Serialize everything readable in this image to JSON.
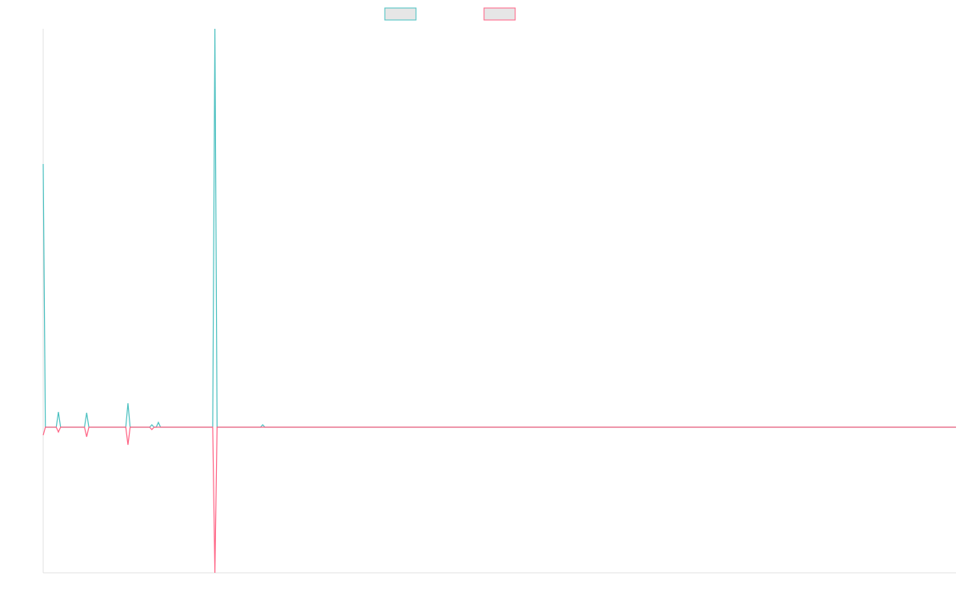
{
  "chart_data": {
    "type": "line",
    "x": [
      0,
      1,
      6,
      7,
      8,
      19,
      20,
      21,
      38,
      39,
      40,
      49,
      50,
      51,
      52,
      53,
      54,
      78,
      79,
      80,
      100,
      101,
      102,
      420
    ],
    "series": [
      {
        "color": "#4bc0c0",
        "values": [
          329,
          0,
          0,
          19,
          0,
          0,
          18,
          0,
          0,
          30,
          0,
          0,
          3,
          0,
          0,
          6,
          0,
          0,
          498,
          0,
          0,
          3,
          0,
          0
        ]
      },
      {
        "color": "#ff6384",
        "values": [
          -10,
          0,
          0,
          -6,
          0,
          0,
          -12,
          0,
          0,
          -22,
          0,
          0,
          -3,
          0,
          0,
          0,
          0,
          0,
          -182,
          0,
          0,
          0,
          0,
          0
        ]
      }
    ],
    "xlim": [
      0,
      420
    ],
    "ylim": [
      -182,
      498
    ]
  }
}
